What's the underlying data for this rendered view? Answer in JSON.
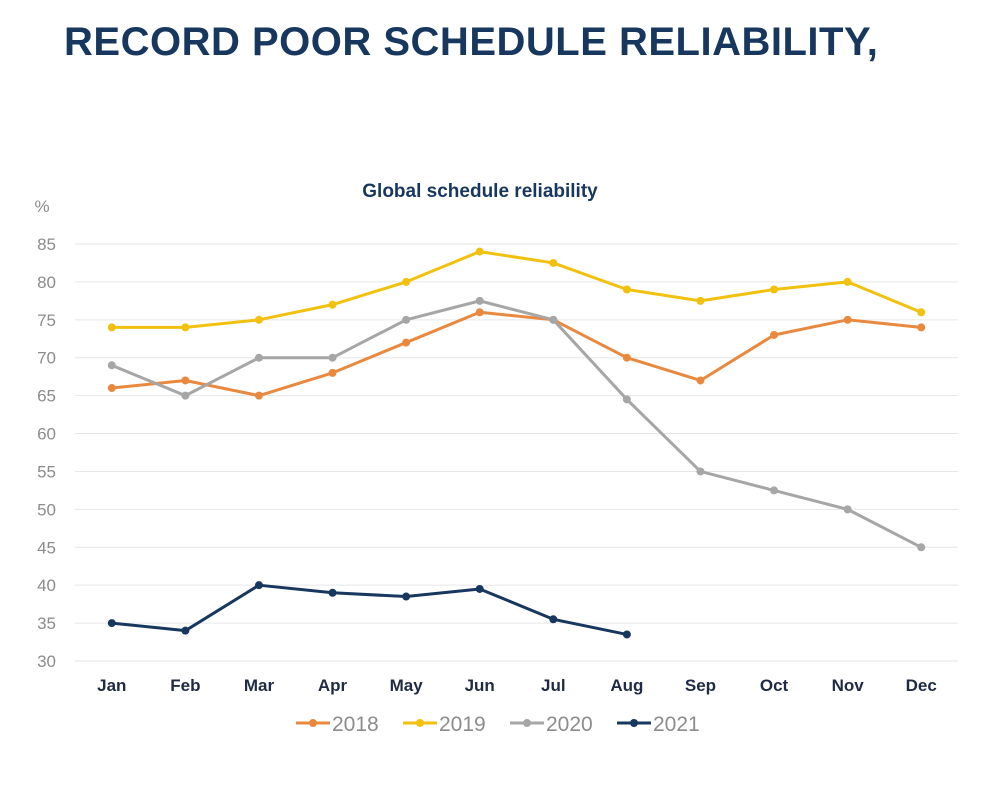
{
  "page": {
    "heading": "RECORD POOR SCHEDULE RELIABILITY,"
  },
  "colors": {
    "heading": "#17375e",
    "axis_text": "#8c8c8c",
    "month_text": "#1f2a44",
    "grid": "#e6e6e6"
  },
  "chart_data": {
    "type": "line",
    "title": "Global schedule reliability",
    "ylabel": "%",
    "xlabel": "",
    "ylim": [
      30,
      85
    ],
    "yticks": [
      30,
      35,
      40,
      45,
      50,
      55,
      60,
      65,
      70,
      75,
      80,
      85
    ],
    "grid": true,
    "legend_position": "bottom",
    "categories": [
      "Jan",
      "Feb",
      "Mar",
      "Apr",
      "May",
      "Jun",
      "Jul",
      "Aug",
      "Sep",
      "Oct",
      "Nov",
      "Dec"
    ],
    "series": [
      {
        "name": "2018",
        "color": "#e8893f",
        "values": [
          66,
          67,
          65,
          68,
          72,
          76,
          75,
          70,
          67,
          73,
          75,
          74
        ]
      },
      {
        "name": "2019",
        "color": "#f2c10f",
        "values": [
          74,
          74,
          75,
          77,
          80,
          84,
          82.5,
          79,
          77.5,
          79,
          80,
          76
        ]
      },
      {
        "name": "2020",
        "color": "#a6a6a6",
        "values": [
          69,
          65,
          70,
          70,
          75,
          77.5,
          75,
          64.5,
          55,
          52.5,
          50,
          45
        ]
      },
      {
        "name": "2021",
        "color": "#17375e",
        "values": [
          35,
          34,
          40,
          39,
          38.5,
          39.5,
          35.5,
          33.5,
          null,
          null,
          null,
          null
        ]
      }
    ]
  }
}
